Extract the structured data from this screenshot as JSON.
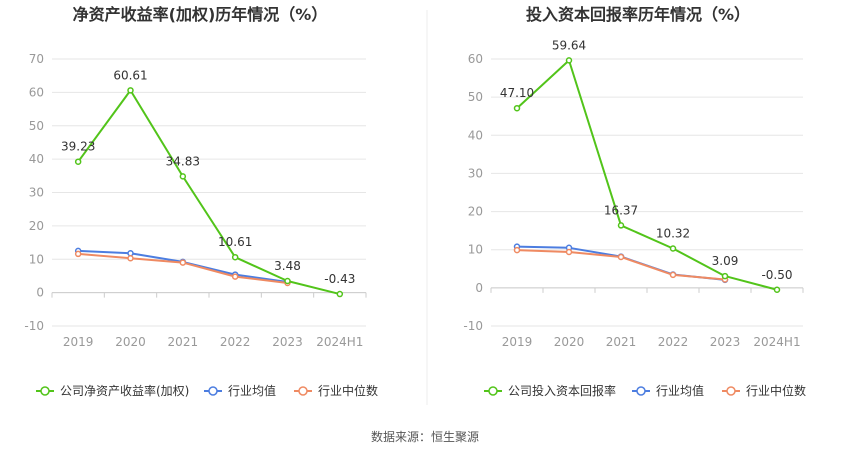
{
  "source": "数据来源：恒生聚源",
  "colors": {
    "company": "#52c41a",
    "average": "#4c7de0",
    "median": "#ef8a62",
    "grid": "#e6e6e6",
    "axis": "#999999",
    "title": "#333333",
    "label": "#333333"
  },
  "chart_data": [
    {
      "type": "line",
      "title": "净资产收益率(加权)历年情况（%）",
      "categories": [
        "2019",
        "2020",
        "2021",
        "2022",
        "2023",
        "2024H1"
      ],
      "ylim": [
        -10,
        70
      ],
      "yticks": [
        -10,
        0,
        10,
        20,
        30,
        40,
        50,
        60,
        70
      ],
      "grid": true,
      "legend_position": "bottom",
      "series": [
        {
          "name": "公司净资产收益率(加权)",
          "key": "company",
          "values": [
            39.23,
            60.61,
            34.83,
            10.61,
            3.48,
            -0.43
          ],
          "labels": [
            "39.23",
            "60.61",
            "34.83",
            "10.61",
            "3.48",
            "-0.43"
          ]
        },
        {
          "name": "行业均值",
          "key": "average",
          "values": [
            12.5,
            11.8,
            9.2,
            5.4,
            3.2,
            null
          ]
        },
        {
          "name": "行业中位数",
          "key": "median",
          "values": [
            11.6,
            10.3,
            9.0,
            4.8,
            2.9,
            null
          ]
        }
      ]
    },
    {
      "type": "line",
      "title": "投入资本回报率历年情况（%）",
      "categories": [
        "2019",
        "2020",
        "2021",
        "2022",
        "2023",
        "2024H1"
      ],
      "ylim": [
        -10,
        60
      ],
      "yticks": [
        -10,
        0,
        10,
        20,
        30,
        40,
        50,
        60
      ],
      "grid": true,
      "legend_position": "bottom",
      "series": [
        {
          "name": "公司投入资本回报率",
          "key": "company",
          "values": [
            47.1,
            59.64,
            16.37,
            10.32,
            3.09,
            -0.5
          ],
          "labels": [
            "47.10",
            "59.64",
            "16.37",
            "10.32",
            "3.09",
            "-0.50"
          ]
        },
        {
          "name": "行业均值",
          "key": "average",
          "values": [
            10.8,
            10.5,
            8.2,
            3.5,
            2.1,
            null
          ]
        },
        {
          "name": "行业中位数",
          "key": "median",
          "values": [
            9.9,
            9.4,
            8.1,
            3.4,
            2.2,
            null
          ]
        }
      ]
    }
  ]
}
